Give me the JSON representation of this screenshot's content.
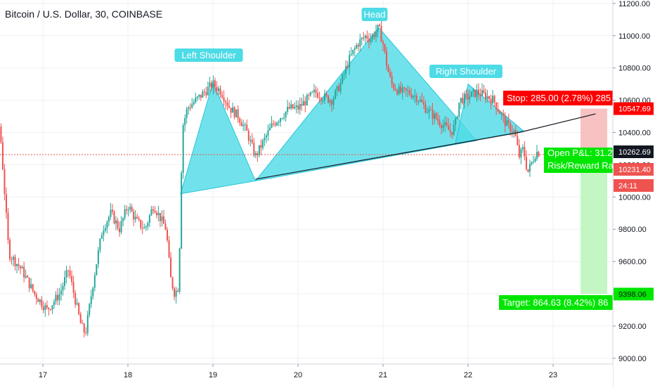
{
  "header": {
    "symbol_title": "Bitcoin / U.S. Dollar, 30, COINBASE"
  },
  "colors": {
    "up": "#26a69a",
    "down": "#ef5350",
    "pattern_fill": "#4ddbe6",
    "pattern_stroke": "#26c6da",
    "label_bg": "#4ddbe6",
    "stop_red": "#ff0000",
    "target_green": "#00e600",
    "last_price_red": "#ef5350"
  },
  "chart_data": {
    "type": "candlestick",
    "title": "Bitcoin / U.S. Dollar, 30, COINBASE",
    "y_axis": {
      "ticks": [
        "9000.00",
        "9200.00",
        "9400.00",
        "9600.00",
        "9800.00",
        "10000.00",
        "10200.00",
        "10400.00",
        "10600.00",
        "10800.00",
        "11000.00",
        "11200.00"
      ],
      "ylim": [
        8960,
        11230
      ]
    },
    "x_axis": {
      "ticks": [
        "17",
        "18",
        "19",
        "20",
        "21",
        "22",
        "23"
      ]
    },
    "price_path": [
      [
        16.4,
        10680
      ],
      [
        16.5,
        10400
      ],
      [
        16.6,
        9650
      ],
      [
        16.75,
        9550
      ],
      [
        16.9,
        9400
      ],
      [
        17.05,
        9300
      ],
      [
        17.2,
        9400
      ],
      [
        17.3,
        9550
      ],
      [
        17.45,
        9200
      ],
      [
        17.5,
        9150
      ],
      [
        17.6,
        9500
      ],
      [
        17.7,
        9800
      ],
      [
        17.8,
        9900
      ],
      [
        17.9,
        9800
      ],
      [
        18.0,
        9950
      ],
      [
        18.1,
        9850
      ],
      [
        18.2,
        9800
      ],
      [
        18.3,
        9950
      ],
      [
        18.4,
        9850
      ],
      [
        18.45,
        9800
      ],
      [
        18.5,
        9500
      ],
      [
        18.55,
        9400
      ],
      [
        18.6,
        9450
      ],
      [
        18.62,
        10050
      ],
      [
        18.65,
        10450
      ],
      [
        18.7,
        10550
      ],
      [
        18.8,
        10600
      ],
      [
        18.9,
        10650
      ],
      [
        19.0,
        10700
      ],
      [
        19.1,
        10650
      ],
      [
        19.2,
        10550
      ],
      [
        19.3,
        10500
      ],
      [
        19.4,
        10400
      ],
      [
        19.5,
        10250
      ],
      [
        19.6,
        10350
      ],
      [
        19.7,
        10450
      ],
      [
        19.8,
        10500
      ],
      [
        19.9,
        10550
      ],
      [
        20.0,
        10550
      ],
      [
        20.1,
        10600
      ],
      [
        20.2,
        10650
      ],
      [
        20.3,
        10620
      ],
      [
        20.4,
        10600
      ],
      [
        20.5,
        10700
      ],
      [
        20.6,
        10850
      ],
      [
        20.7,
        10950
      ],
      [
        20.8,
        11000
      ],
      [
        20.85,
        10980
      ],
      [
        20.95,
        11050
      ],
      [
        21.0,
        10950
      ],
      [
        21.05,
        10800
      ],
      [
        21.1,
        10700
      ],
      [
        21.2,
        10650
      ],
      [
        21.3,
        10650
      ],
      [
        21.4,
        10620
      ],
      [
        21.5,
        10550
      ],
      [
        21.6,
        10500
      ],
      [
        21.7,
        10450
      ],
      [
        21.8,
        10400
      ],
      [
        21.85,
        10450
      ],
      [
        21.9,
        10600
      ],
      [
        22.0,
        10620
      ],
      [
        22.1,
        10650
      ],
      [
        22.2,
        10630
      ],
      [
        22.3,
        10600
      ],
      [
        22.35,
        10550
      ],
      [
        22.45,
        10450
      ],
      [
        22.55,
        10400
      ],
      [
        22.6,
        10250
      ],
      [
        22.65,
        10300
      ],
      [
        22.7,
        10150
      ],
      [
        22.8,
        10280
      ],
      [
        22.9,
        10262.69
      ]
    ],
    "annotations": {
      "left_shoulder": "Left Shoulder",
      "head": "Head",
      "right_shoulder": "Right Shoulder",
      "stop_label": "Stop: 285.00 (2.78%) 285",
      "target_label": "Target: 864.63 (8.42%) 86",
      "open_pl_label": "Open P&L: 31.2",
      "risk_reward_label": "Risk/Reward Rat"
    },
    "position": {
      "entry": 10262.69,
      "stop": 10547.69,
      "target": 9398.06
    },
    "price_tags": {
      "stop": "10547.69",
      "last": "10262.69",
      "bid": "10231.40",
      "countdown": "24:11",
      "target": "9398.06"
    }
  }
}
